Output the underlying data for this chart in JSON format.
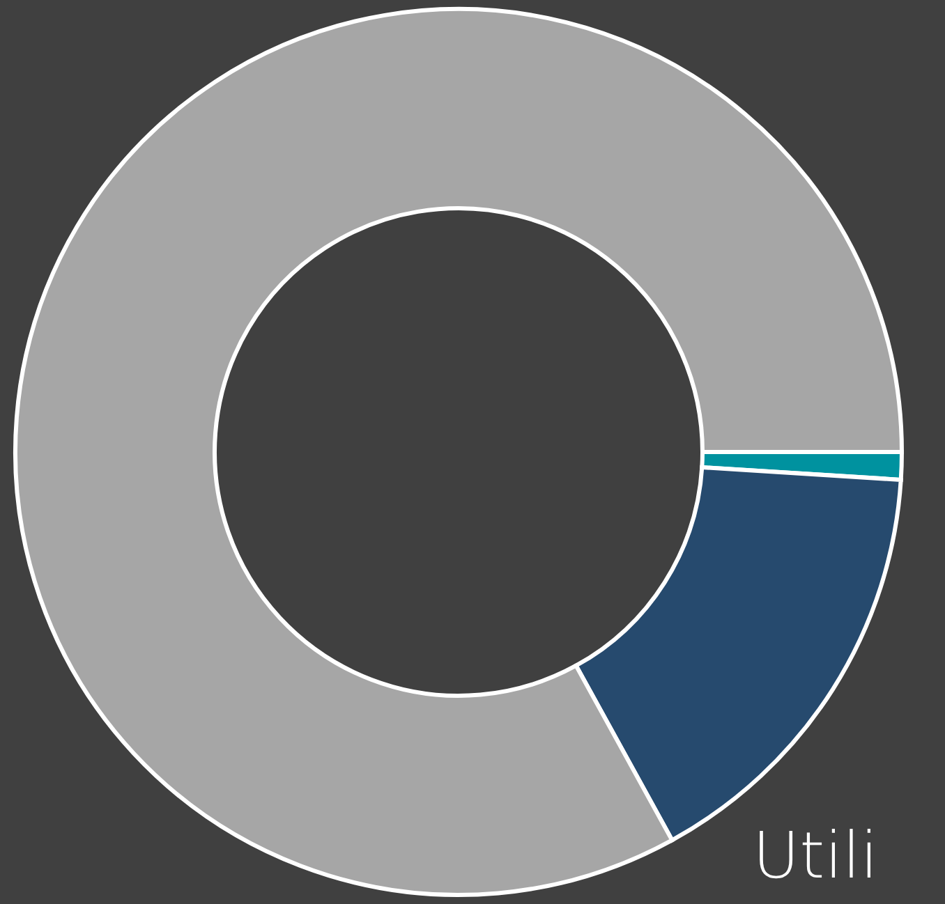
{
  "chart_data": {
    "type": "donut",
    "categories": [
      null,
      null,
      null
    ],
    "values": [
      1,
      16,
      83
    ],
    "colors": [
      "#00929f",
      "#264a6e",
      "#a6a6a6"
    ],
    "annotations": [
      "Utili"
    ]
  }
}
